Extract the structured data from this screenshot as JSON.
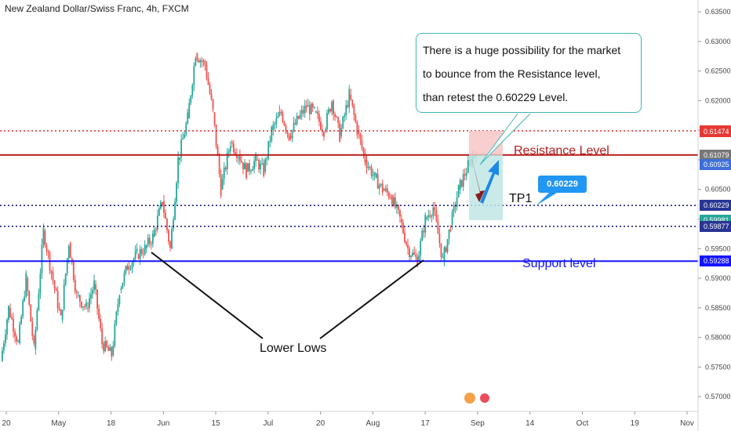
{
  "chart_title": "New Zealand Dollar/Swiss Franc, 4h, FXCM",
  "chart_data": {
    "type": "line",
    "ylim": [
      0.5675,
      0.637
    ],
    "y_ticks": [
      0.635,
      0.63,
      0.625,
      0.62,
      0.615,
      0.61,
      0.605,
      0.6,
      0.595,
      0.59,
      0.585,
      0.58,
      0.575,
      0.57
    ],
    "x_ticks": [
      "20",
      "May",
      "18",
      "Jun",
      "15",
      "Jul",
      "20",
      "Aug",
      "17",
      "Sep",
      "14",
      "Oct",
      "19",
      "Nov"
    ],
    "price_path": [
      [
        0.576,
        0.585
      ],
      [
        0.585,
        0.579
      ],
      [
        0.579,
        0.59
      ],
      [
        0.59,
        0.578
      ],
      [
        0.578,
        0.598
      ],
      [
        0.598,
        0.591
      ],
      [
        0.591,
        0.583
      ],
      [
        0.583,
        0.596
      ],
      [
        0.596,
        0.587
      ],
      [
        0.587,
        0.585
      ],
      [
        0.585,
        0.589
      ],
      [
        0.589,
        0.579
      ],
      [
        0.579,
        0.577
      ],
      [
        0.577,
        0.588
      ],
      [
        0.588,
        0.592
      ],
      [
        0.592,
        0.594
      ],
      [
        0.594,
        0.595
      ],
      [
        0.595,
        0.597
      ],
      [
        0.597,
        0.603
      ],
      [
        0.603,
        0.595
      ],
      [
        0.595,
        0.61
      ],
      [
        0.61,
        0.617
      ],
      [
        0.617,
        0.628
      ],
      [
        0.628,
        0.626
      ],
      [
        0.626,
        0.618
      ],
      [
        0.618,
        0.605
      ],
      [
        0.605,
        0.613
      ],
      [
        0.613,
        0.611
      ],
      [
        0.611,
        0.608
      ],
      [
        0.608,
        0.61
      ],
      [
        0.61,
        0.608
      ],
      [
        0.608,
        0.615
      ],
      [
        0.615,
        0.618
      ],
      [
        0.618,
        0.614
      ],
      [
        0.614,
        0.617
      ],
      [
        0.617,
        0.619
      ],
      [
        0.619,
        0.618
      ],
      [
        0.618,
        0.615
      ],
      [
        0.615,
        0.62
      ],
      [
        0.62,
        0.614
      ],
      [
        0.614,
        0.621
      ],
      [
        0.621,
        0.615
      ],
      [
        0.615,
        0.61
      ],
      [
        0.61,
        0.607
      ],
      [
        0.607,
        0.605
      ],
      [
        0.605,
        0.604
      ],
      [
        0.604,
        0.6
      ],
      [
        0.6,
        0.595
      ],
      [
        0.595,
        0.593
      ],
      [
        0.593,
        0.6
      ],
      [
        0.6,
        0.602
      ],
      [
        0.602,
        0.593
      ],
      [
        0.593,
        0.599
      ],
      [
        0.599,
        0.605
      ],
      [
        0.605,
        0.609
      ],
      [
        0.609,
        0.6115
      ]
    ],
    "levels": [
      {
        "value": 0.6149,
        "label": "0.61490",
        "color": "#e53935",
        "style": "dotted"
      },
      {
        "value": 0.61082,
        "label": "0.61082",
        "color": "#b71c1c",
        "style": "solid"
      },
      {
        "value": 0.60229,
        "label": "0.60229",
        "color": "#1a237e",
        "style": "dotted"
      },
      {
        "value": 0.59877,
        "label": "0.59877",
        "color": "#1a237e",
        "style": "dotted"
      },
      {
        "value": 0.59288,
        "label": "0.59288",
        "color": "#1515ff",
        "style": "solid"
      }
    ],
    "price_labels": [
      {
        "text": "0.61490",
        "value": 0.6149,
        "color": "#e53935"
      },
      {
        "text": "0.61474",
        "value": 0.61474,
        "color": "#e53935"
      },
      {
        "text": "0.61082",
        "value": 0.61082,
        "color": "#b71c1c"
      },
      {
        "text": "0.61079",
        "value": 0.61079,
        "color": "#777777"
      },
      {
        "text": "0.60925",
        "value": 0.60925,
        "color": "#3f6fd8"
      },
      {
        "text": "0.60229",
        "value": 0.60229,
        "color": "#283593"
      },
      {
        "text": "0.59981",
        "value": 0.59981,
        "color": "#26a69a"
      },
      {
        "text": "0.59877",
        "value": 0.59877,
        "color": "#283593"
      },
      {
        "text": "0.59288",
        "value": 0.59288,
        "color": "#1515ff"
      }
    ],
    "trade_box": {
      "top": 0.6149,
      "mid": 0.61082,
      "bottom": 0.59981
    }
  },
  "annotations": {
    "note_lines": [
      "There is a huge possibility for the market",
      "to bounce from the Resistance level,",
      "than retest the 0.60229 Level."
    ],
    "resistance_label": "Resistance Level",
    "support_label": "Support level",
    "tp1_label": "TP1",
    "tp1_callout": "0.60229",
    "lower_lows_label": "Lower Lows"
  },
  "colors": {
    "up": "#26a69a",
    "down": "#ef5350",
    "accent": "#2196f3"
  }
}
